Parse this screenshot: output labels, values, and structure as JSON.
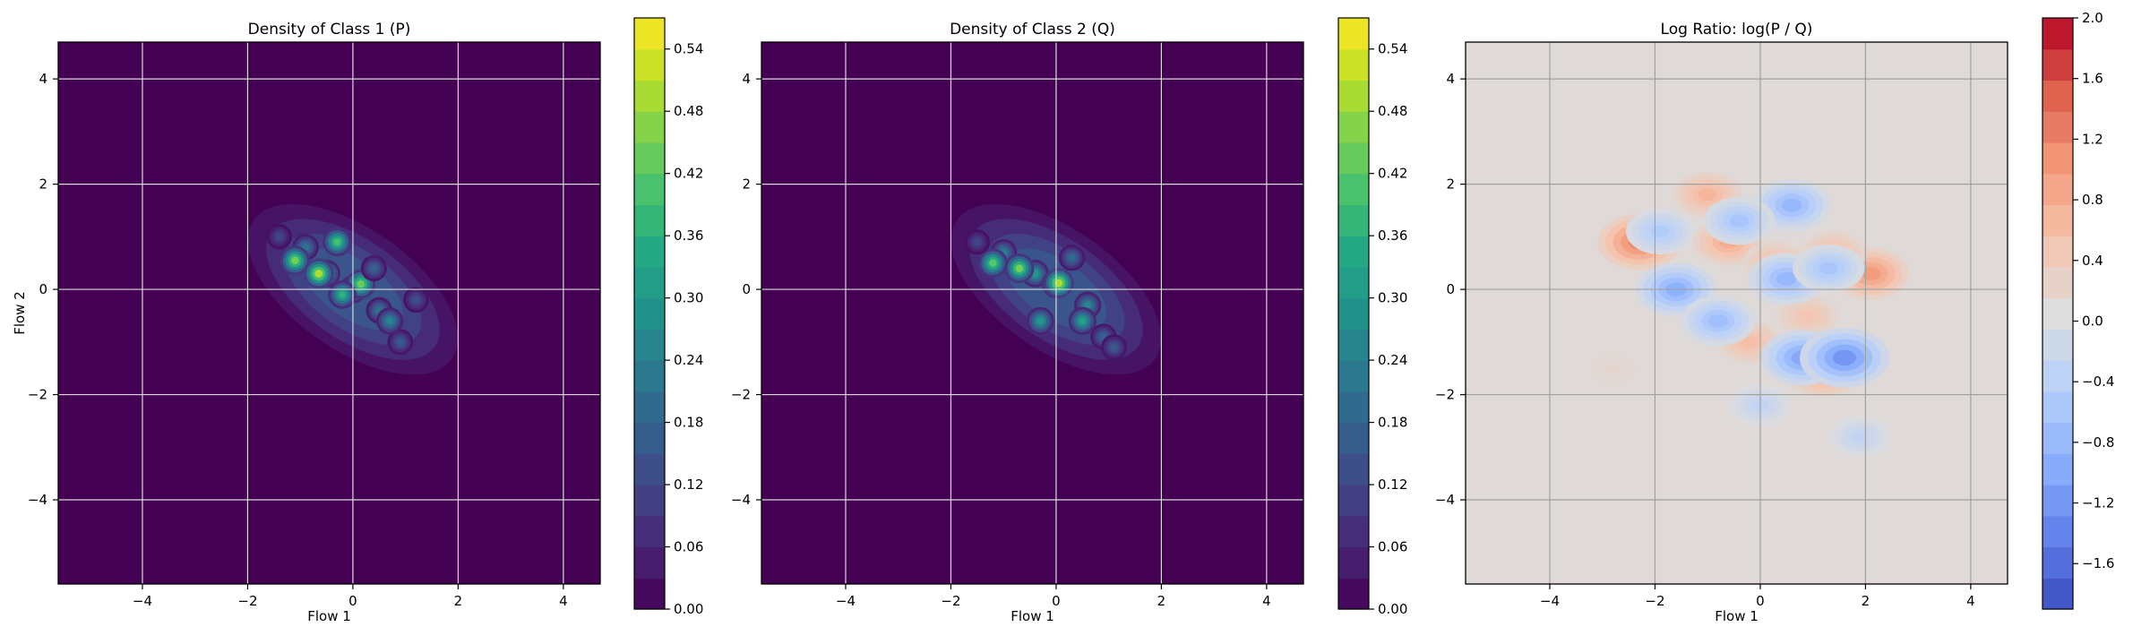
{
  "chart_data": [
    {
      "type": "heatmap",
      "subtype": "filled-contour",
      "title": "Density of Class 1 (P)",
      "xlabel": "Flow 1",
      "ylabel": "Flow 2",
      "xlim": [
        -5.6,
        4.7
      ],
      "ylim": [
        -5.6,
        4.7
      ],
      "xticks": [
        -4,
        -2,
        0,
        2,
        4
      ],
      "yticks": [
        -4,
        -2,
        0,
        2,
        4
      ],
      "xtick_labels": [
        "−4",
        "−2",
        "0",
        "2",
        "4"
      ],
      "ytick_labels": [
        "−4",
        "−2",
        "0",
        "2",
        "4"
      ],
      "grid": true,
      "colormap": "viridis",
      "colorbar": {
        "min": 0.0,
        "max": 0.57,
        "ticks": [
          0.0,
          0.06,
          0.12,
          0.18,
          0.24,
          0.3,
          0.36,
          0.42,
          0.48,
          0.54
        ],
        "tick_labels": [
          "0.00",
          "0.06",
          "0.12",
          "0.18",
          "0.24",
          "0.30",
          "0.36",
          "0.42",
          "0.48",
          "0.54"
        ],
        "levels": 19
      },
      "blobs": [
        {
          "x": -0.9,
          "y": 0.8,
          "value": 0.22
        },
        {
          "x": -0.5,
          "y": 0.3,
          "value": 0.3
        },
        {
          "x": 0.0,
          "y": 0.0,
          "value": 0.32
        },
        {
          "x": 0.5,
          "y": -0.4,
          "value": 0.22
        },
        {
          "x": 0.9,
          "y": -1.0,
          "value": 0.16
        },
        {
          "x": -0.3,
          "y": 0.9,
          "value": 0.4
        },
        {
          "x": -1.1,
          "y": 0.55,
          "value": 0.45
        },
        {
          "x": -0.65,
          "y": 0.3,
          "value": 0.5
        },
        {
          "x": 0.15,
          "y": 0.1,
          "value": 0.44
        },
        {
          "x": -0.2,
          "y": -0.1,
          "value": 0.36
        },
        {
          "x": 0.7,
          "y": -0.6,
          "value": 0.26
        },
        {
          "x": 1.2,
          "y": -0.2,
          "value": 0.14
        },
        {
          "x": -1.4,
          "y": 1.0,
          "value": 0.12
        },
        {
          "x": 0.4,
          "y": 0.4,
          "value": 0.18
        }
      ]
    },
    {
      "type": "heatmap",
      "subtype": "filled-contour",
      "title": "Density of Class 2 (Q)",
      "xlabel": "Flow 1",
      "ylabel": "",
      "xlim": [
        -5.6,
        4.7
      ],
      "ylim": [
        -5.6,
        4.7
      ],
      "xticks": [
        -4,
        -2,
        0,
        2,
        4
      ],
      "yticks": [
        -4,
        -2,
        0,
        2,
        4
      ],
      "xtick_labels": [
        "−4",
        "−2",
        "0",
        "2",
        "4"
      ],
      "ytick_labels": [
        "−4",
        "−2",
        "0",
        "2",
        "4"
      ],
      "grid": true,
      "colormap": "viridis",
      "colorbar": {
        "min": 0.0,
        "max": 0.57,
        "ticks": [
          0.0,
          0.06,
          0.12,
          0.18,
          0.24,
          0.3,
          0.36,
          0.42,
          0.48,
          0.54
        ],
        "tick_labels": [
          "0.00",
          "0.06",
          "0.12",
          "0.18",
          "0.24",
          "0.30",
          "0.36",
          "0.42",
          "0.48",
          "0.54"
        ],
        "levels": 19
      },
      "blobs": [
        {
          "x": -1.0,
          "y": 0.7,
          "value": 0.24
        },
        {
          "x": -0.4,
          "y": 0.3,
          "value": 0.3
        },
        {
          "x": 0.0,
          "y": 0.1,
          "value": 0.4
        },
        {
          "x": 0.6,
          "y": -0.3,
          "value": 0.26
        },
        {
          "x": 0.9,
          "y": -0.9,
          "value": 0.18
        },
        {
          "x": -0.7,
          "y": 0.4,
          "value": 0.45
        },
        {
          "x": -1.2,
          "y": 0.5,
          "value": 0.42
        },
        {
          "x": 0.05,
          "y": 0.12,
          "value": 0.5
        },
        {
          "x": -0.3,
          "y": -0.6,
          "value": 0.3
        },
        {
          "x": 0.5,
          "y": -0.6,
          "value": 0.32
        },
        {
          "x": 1.1,
          "y": -1.1,
          "value": 0.16
        },
        {
          "x": -1.5,
          "y": 0.9,
          "value": 0.12
        },
        {
          "x": 0.3,
          "y": 0.6,
          "value": 0.2
        }
      ]
    },
    {
      "type": "heatmap",
      "subtype": "filled-contour",
      "title": "Log Ratio: log(P / Q)",
      "xlabel": "Flow 1",
      "ylabel": "",
      "xlim": [
        -5.6,
        4.7
      ],
      "ylim": [
        -5.6,
        4.7
      ],
      "xticks": [
        -4,
        -2,
        0,
        2,
        4
      ],
      "yticks": [
        -4,
        -2,
        0,
        2,
        4
      ],
      "xtick_labels": [
        "−4",
        "−2",
        "0",
        "2",
        "4"
      ],
      "ytick_labels": [
        "−4",
        "−2",
        "0",
        "2",
        "4"
      ],
      "grid": true,
      "colormap": "coolwarm",
      "colorbar": {
        "min": -1.9,
        "max": 2.0,
        "ticks": [
          -1.6,
          -1.2,
          -0.8,
          -0.4,
          0.0,
          0.4,
          0.8,
          1.2,
          1.6,
          2.0
        ],
        "tick_labels": [
          "−1.6",
          "−1.2",
          "−0.8",
          "−0.4",
          "0.0",
          "0.4",
          "0.8",
          "1.2",
          "1.6",
          "2.0"
        ],
        "levels": 19
      },
      "baseline_value": 0.1,
      "blobs": [
        {
          "x": -2.3,
          "y": 0.9,
          "value": 1.2
        },
        {
          "x": 2.1,
          "y": 0.3,
          "value": 1.0
        },
        {
          "x": -1.0,
          "y": 1.8,
          "value": 0.7
        },
        {
          "x": -0.6,
          "y": 0.9,
          "value": 0.8
        },
        {
          "x": 0.3,
          "y": 0.5,
          "value": 0.6
        },
        {
          "x": 1.2,
          "y": -1.6,
          "value": 0.8
        },
        {
          "x": 1.4,
          "y": 0.7,
          "value": 0.6
        },
        {
          "x": -0.2,
          "y": -1.0,
          "value": 0.6
        },
        {
          "x": 0.9,
          "y": -0.5,
          "value": 0.5
        },
        {
          "x": -1.6,
          "y": 0.0,
          "value": -0.9
        },
        {
          "x": 0.6,
          "y": 1.6,
          "value": -0.8
        },
        {
          "x": 0.8,
          "y": -1.3,
          "value": -1.0
        },
        {
          "x": 1.6,
          "y": -1.3,
          "value": -1.2
        },
        {
          "x": -0.8,
          "y": -0.6,
          "value": -0.7
        },
        {
          "x": 0.5,
          "y": 0.2,
          "value": -0.8
        },
        {
          "x": -0.4,
          "y": 1.3,
          "value": -0.6
        },
        {
          "x": 1.3,
          "y": 0.4,
          "value": -0.6
        },
        {
          "x": -1.9,
          "y": 1.1,
          "value": -0.5
        },
        {
          "x": 0.0,
          "y": -2.2,
          "value": -0.3
        },
        {
          "x": 1.9,
          "y": -2.8,
          "value": -0.3
        },
        {
          "x": -2.8,
          "y": -1.5,
          "value": 0.2
        }
      ]
    }
  ]
}
